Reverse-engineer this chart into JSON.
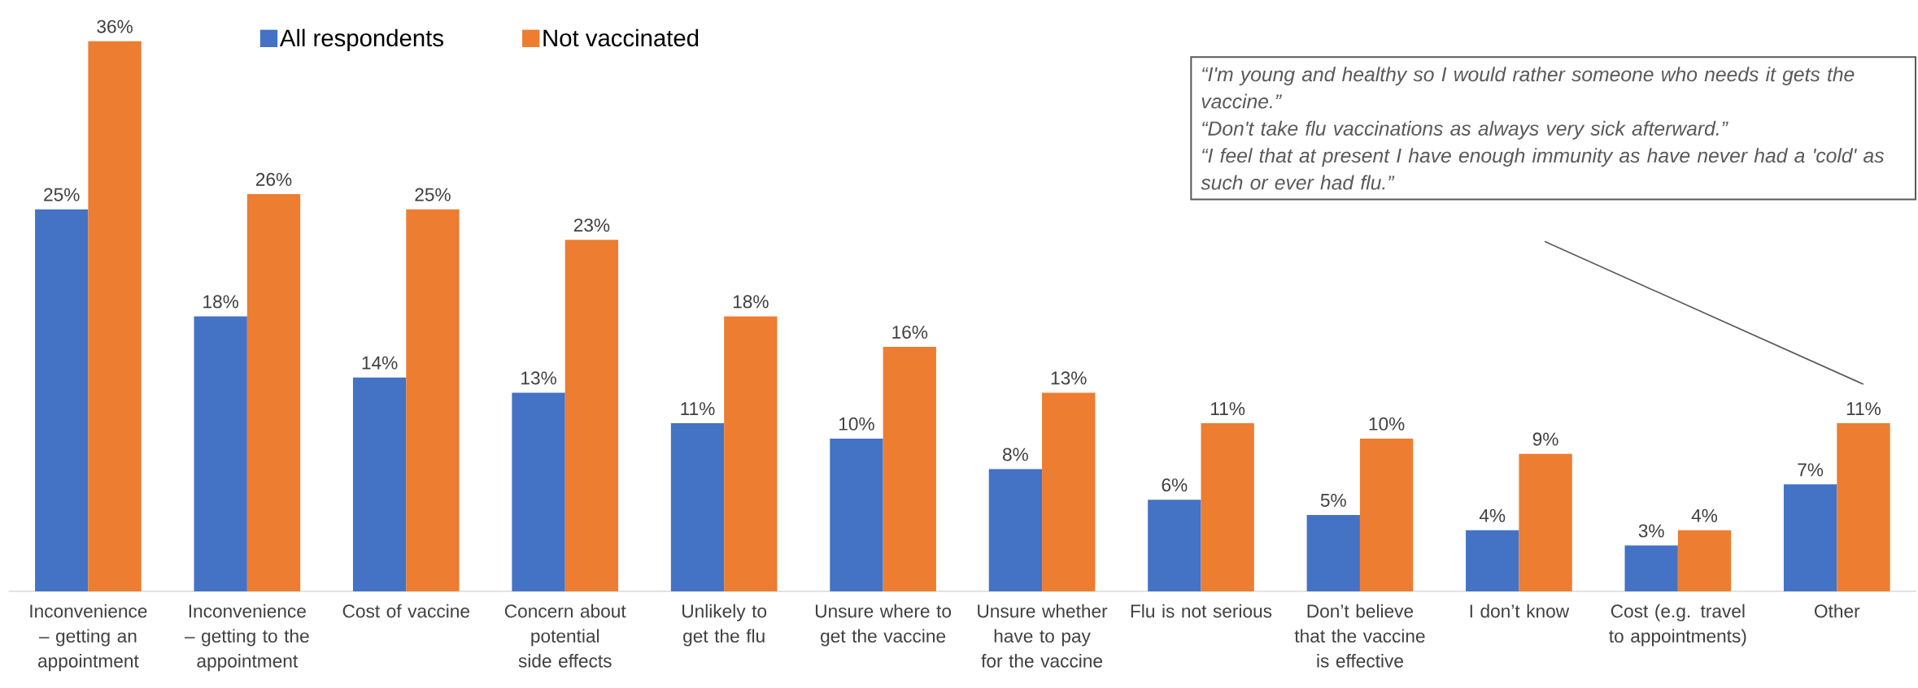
{
  "chart_data": {
    "type": "bar",
    "categories": [
      "Inconvenience – getting an appointment",
      "Inconvenience – getting to the appointment",
      "Cost of vaccine",
      "Concern about potential side effects",
      "Unlikely to get the flu",
      "Unsure where to get the vaccine",
      "Unsure whether have to pay for the vaccine",
      "Flu is not serious",
      "Don’t believe that the vaccine is effective",
      "I don’t know",
      "Cost (e.g. travel to appointments)",
      "Other"
    ],
    "series": [
      {
        "name": "All respondents",
        "color": "#4472c4",
        "values": [
          25,
          18,
          14,
          13,
          11,
          10,
          8,
          6,
          5,
          4,
          3,
          7
        ],
        "value_labels": [
          "25%",
          "18%",
          "14%",
          "13%",
          "11%",
          "10%",
          "8%",
          "6%",
          "5%",
          "4%",
          "3%",
          "7%"
        ]
      },
      {
        "name": "Not vaccinated",
        "color": "#ed7d31",
        "values": [
          36,
          26,
          25,
          23,
          18,
          16,
          13,
          11,
          10,
          9,
          4,
          11
        ],
        "value_labels": [
          "36%",
          "26%",
          "25%",
          "23%",
          "18%",
          "16%",
          "13%",
          "11%",
          "10%",
          "9%",
          "4%",
          "11%"
        ]
      }
    ],
    "annotations": [
      "“I'm young and healthy so I would rather someone who needs it gets the vaccine.”",
      "“Don't take flu vaccinations as always very sick afterward.”",
      "“I feel that at present I have enough immunity as have never had a 'cold' as such or ever had flu.”"
    ],
    "legend": "top left"
  }
}
